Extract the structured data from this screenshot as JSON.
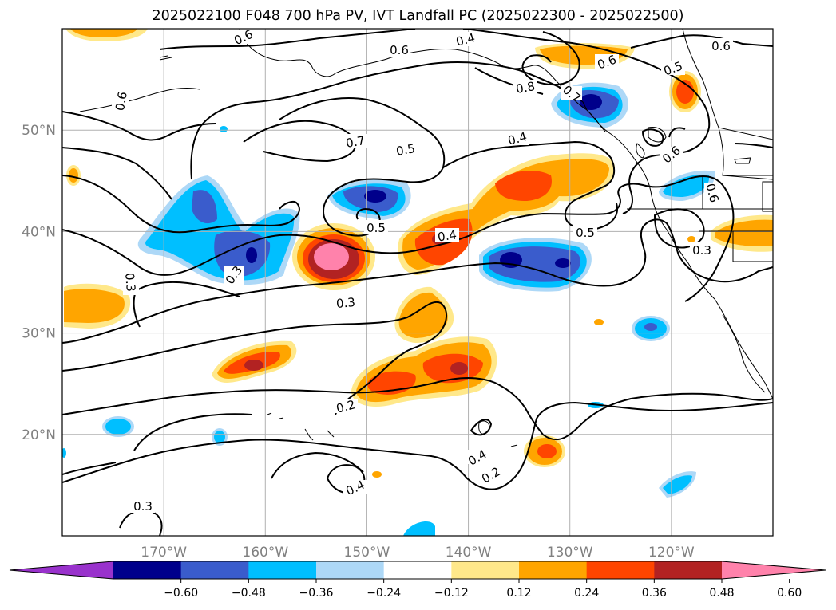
{
  "title": "2025022100 F048 700 hPa PV, IVT Landfall PC (2025022300 - 2025022500)",
  "latitudes": [
    {
      "value": 50,
      "label": "50°N"
    },
    {
      "value": 40,
      "label": "40°N"
    },
    {
      "value": 30,
      "label": "30°N"
    },
    {
      "value": 20,
      "label": "20°N"
    }
  ],
  "longitudes": [
    {
      "value": -170,
      "label": "170°W"
    },
    {
      "value": -160,
      "label": "160°W"
    },
    {
      "value": -150,
      "label": "150°W"
    },
    {
      "value": -140,
      "label": "140°W"
    },
    {
      "value": -130,
      "label": "130°W"
    },
    {
      "value": -120,
      "label": "120°W"
    }
  ],
  "colorbar": {
    "levels": [
      -0.6,
      -0.48,
      -0.36,
      -0.24,
      -0.12,
      0.12,
      0.24,
      0.36,
      0.48,
      0.6
    ],
    "tick_labels": [
      "−0.60",
      "−0.48",
      "−0.36",
      "−0.24",
      "−0.12",
      "0.12",
      "0.24",
      "0.36",
      "0.48",
      "0.60"
    ],
    "colors": [
      "#9932cc",
      "#00008b",
      "#3a5ccc",
      "#00bfff",
      "#add8f7",
      "#ffffff",
      "#ffe88a",
      "#ffa500",
      "#ff4500",
      "#b22222",
      "#ff82ab"
    ]
  },
  "contour_labels": [
    "0.6",
    "0.6",
    "0.7",
    "0.4",
    "0.6",
    "0.8",
    "0.5",
    "0.6",
    "0.6",
    "0.7",
    "0.5",
    "0.4",
    "0.6",
    "0.6",
    "0.5",
    "0.4",
    "0.5",
    "0.3",
    "0.3",
    "0.3",
    "0.3",
    "0.2",
    "0.4",
    "0.4",
    "0.2",
    "0.3"
  ]
}
